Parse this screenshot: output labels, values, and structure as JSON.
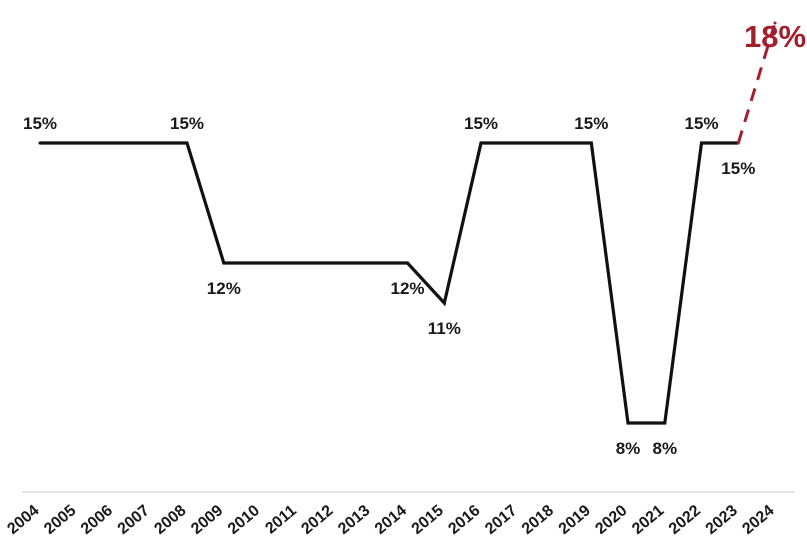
{
  "chart_data": {
    "type": "line",
    "title": "",
    "xlabel": "",
    "ylabel": "",
    "x": [
      "2004",
      "2005",
      "2006",
      "2007",
      "2008",
      "2009",
      "2010",
      "2011",
      "2012",
      "2013",
      "2014",
      "2015",
      "2016",
      "2017",
      "2018",
      "2019",
      "2020",
      "2021",
      "2022",
      "2023",
      "2024"
    ],
    "series": [
      {
        "values": [
          15,
          15,
          15,
          15,
          15,
          12,
          12,
          12,
          12,
          12,
          12,
          11,
          15,
          15,
          15,
          15,
          8,
          8,
          15,
          15,
          null
        ],
        "color": "#111111",
        "style": "solid"
      },
      {
        "values": [
          null,
          null,
          null,
          null,
          null,
          null,
          null,
          null,
          null,
          null,
          null,
          null,
          null,
          null,
          null,
          null,
          null,
          null,
          null,
          15,
          18
        ],
        "color": "#a31f2b",
        "style": "dashed"
      }
    ],
    "data_labels": [
      {
        "x": "2004",
        "text": "15%",
        "position": "above"
      },
      {
        "x": "2008",
        "text": "15%",
        "position": "above"
      },
      {
        "x": "2009",
        "text": "12%",
        "position": "below"
      },
      {
        "x": "2014",
        "text": "12%",
        "position": "below"
      },
      {
        "x": "2015",
        "text": "11%",
        "position": "below"
      },
      {
        "x": "2016",
        "text": "15%",
        "position": "above"
      },
      {
        "x": "2019",
        "text": "15%",
        "position": "above"
      },
      {
        "x": "2020",
        "text": "8%",
        "position": "below"
      },
      {
        "x": "2021",
        "text": "8%",
        "position": "below"
      },
      {
        "x": "2022",
        "text": "15%",
        "position": "above"
      },
      {
        "x": "2023",
        "text": "15%",
        "position": "below"
      },
      {
        "x": "2024",
        "text": "18%",
        "position": "above",
        "highlight": true
      }
    ],
    "ylim": [
      8,
      18
    ],
    "grid": false,
    "legend": "none",
    "axis_line_color": "#dddddd"
  }
}
